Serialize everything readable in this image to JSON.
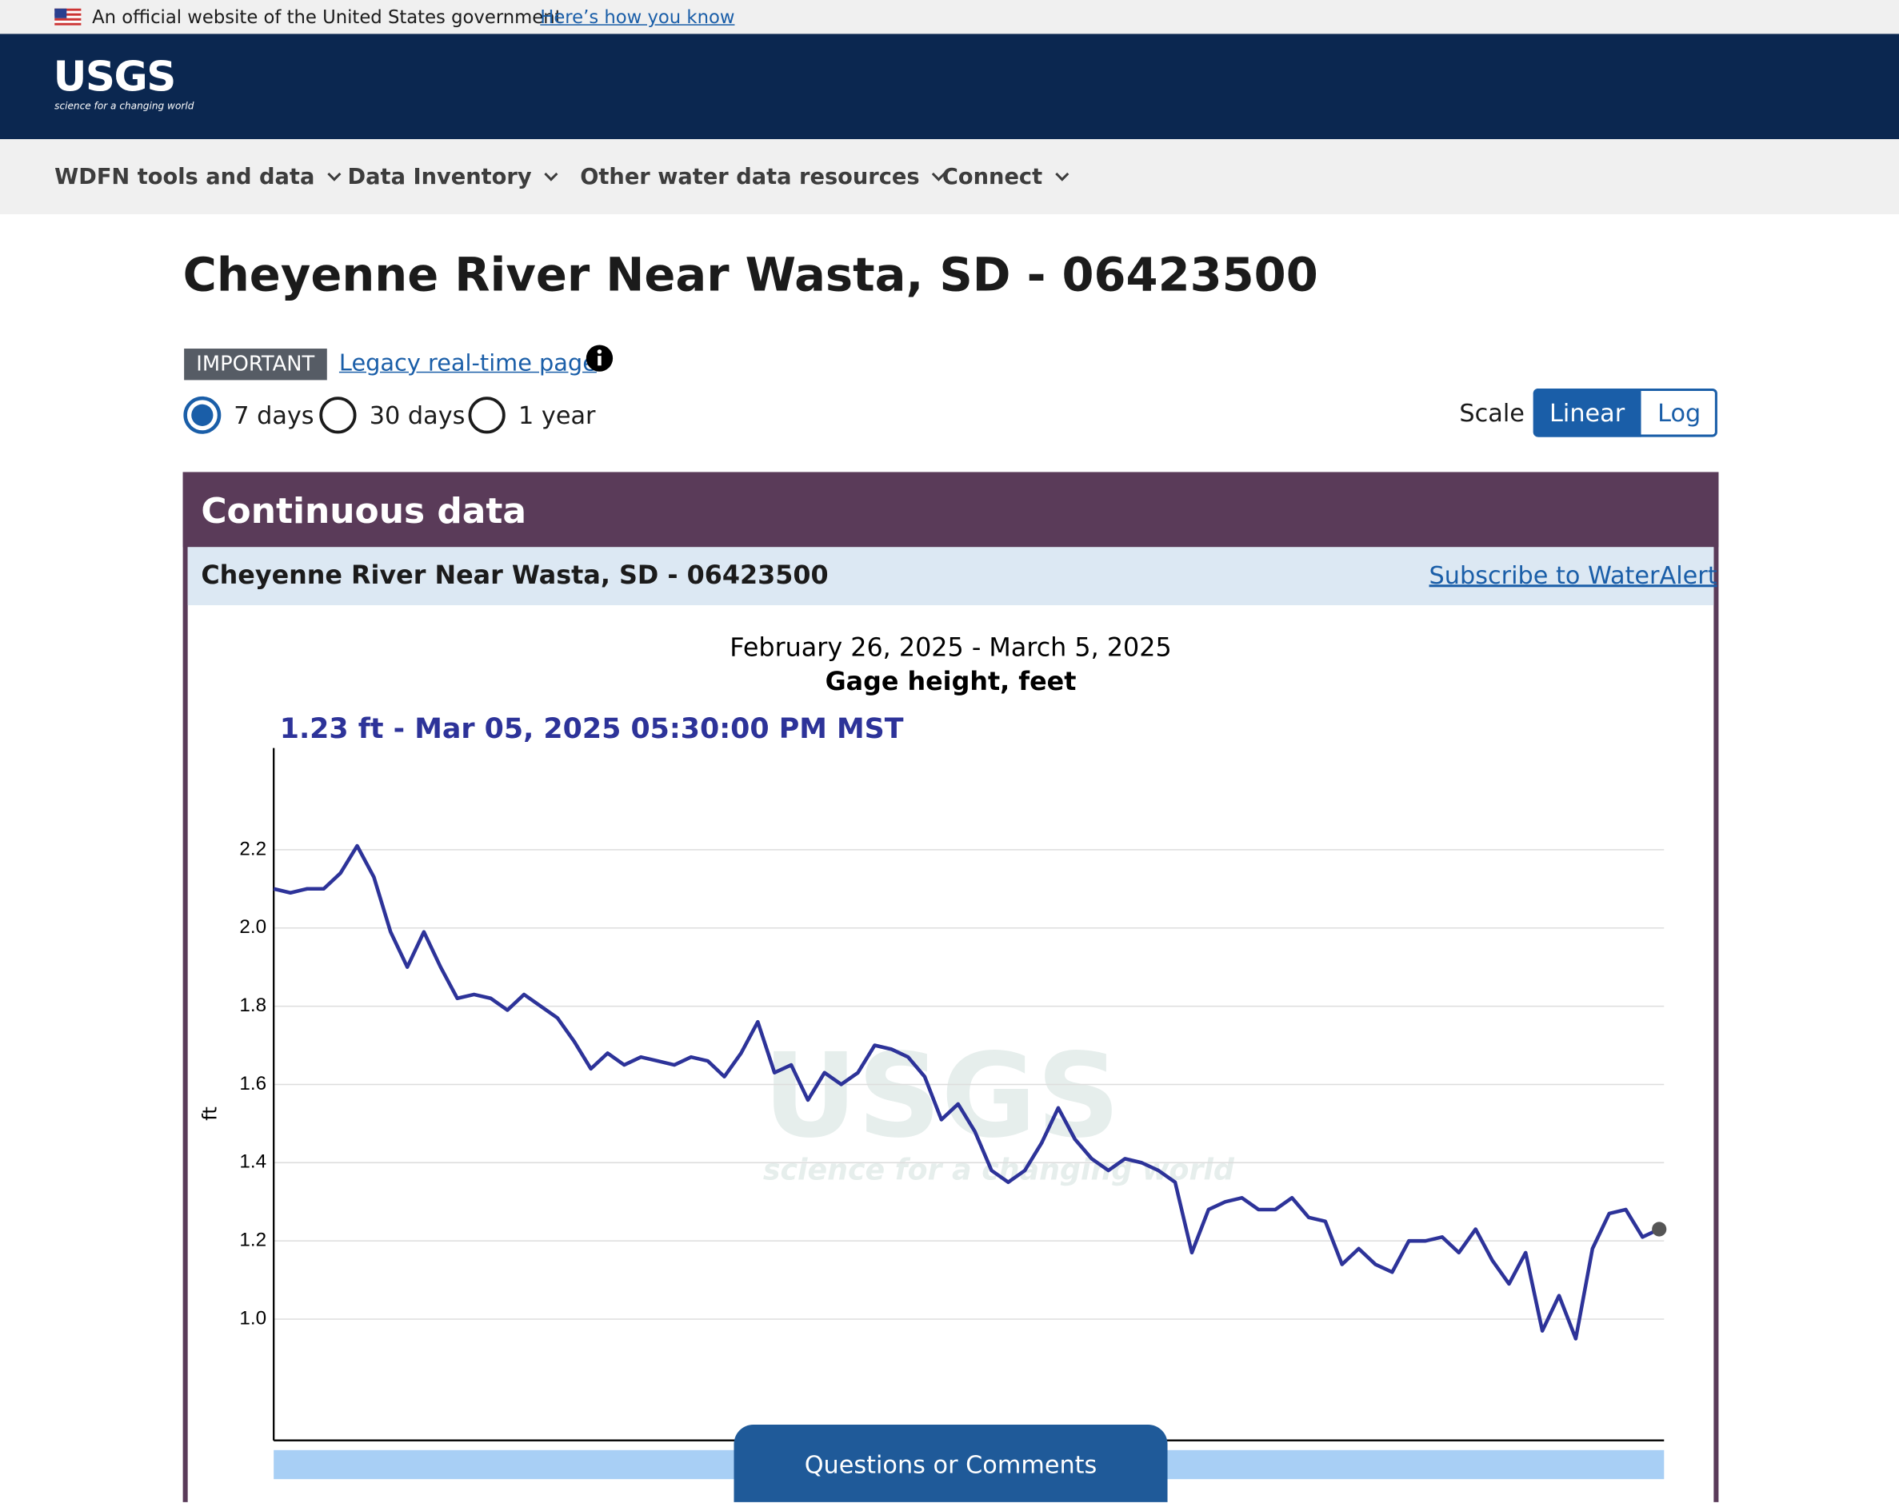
{
  "banner": {
    "text": "An official website of the United States government",
    "link": "Here’s how you know"
  },
  "header": {
    "logo": "USGS",
    "tagline": "science for a changing world"
  },
  "nav": [
    "WDFN tools and data",
    "Data Inventory",
    "Other water data resources",
    "Connect"
  ],
  "page": {
    "title": "Cheyenne River Near Wasta, SD - 06423500",
    "badge": "IMPORTANT",
    "legacy_link": "Legacy real-time page",
    "periods": [
      "7 days",
      "30 days",
      "1 year"
    ],
    "scale_label": "Scale",
    "scale_options": [
      "Linear",
      "Log"
    ]
  },
  "panel": {
    "title": "Continuous data",
    "site": "Cheyenne River Near Wasta, SD - 06423500",
    "subscribe": "Subscribe to WaterAlert"
  },
  "chart_data": {
    "type": "line",
    "title": "February 26, 2025 - March 5, 2025",
    "subtitle": "Gage height, feet",
    "annotation": "1.23 ft - Mar 05, 2025 05:30:00 PM MST",
    "y_label": "ft",
    "watermark": {
      "logo": "USGS",
      "tagline": "science for a changing world"
    },
    "color": "#2d3399",
    "grid": true,
    "ylim": [
      0.69,
      2.46
    ],
    "yticks": [
      {
        "value": 1.0,
        "label": "1.0"
      },
      1.2,
      1.4,
      1.6,
      1.8,
      {
        "value": 2.0,
        "label": "2.0"
      },
      2.2
    ],
    "values": [
      2.1,
      2.09,
      2.1,
      2.1,
      2.14,
      2.21,
      2.13,
      1.99,
      1.9,
      1.99,
      1.9,
      1.82,
      1.83,
      1.82,
      1.79,
      1.83,
      1.8,
      1.77,
      1.71,
      1.64,
      1.68,
      1.65,
      1.67,
      1.66,
      1.65,
      1.67,
      1.66,
      1.62,
      1.68,
      1.76,
      1.63,
      1.65,
      1.56,
      1.63,
      1.6,
      1.63,
      1.7,
      1.69,
      1.67,
      1.62,
      1.51,
      1.55,
      1.48,
      1.38,
      1.35,
      1.38,
      1.45,
      1.54,
      1.46,
      1.41,
      1.38,
      1.41,
      1.4,
      1.38,
      1.35,
      1.17,
      1.28,
      1.3,
      1.31,
      1.28,
      1.28,
      1.31,
      1.26,
      1.25,
      1.14,
      1.18,
      1.14,
      1.12,
      1.2,
      1.2,
      1.21,
      1.17,
      1.23,
      1.15,
      1.09,
      1.17,
      0.97,
      1.06,
      0.95,
      1.18,
      1.27,
      1.28,
      1.21,
      1.23
    ]
  },
  "feedback": "Questions or Comments"
}
